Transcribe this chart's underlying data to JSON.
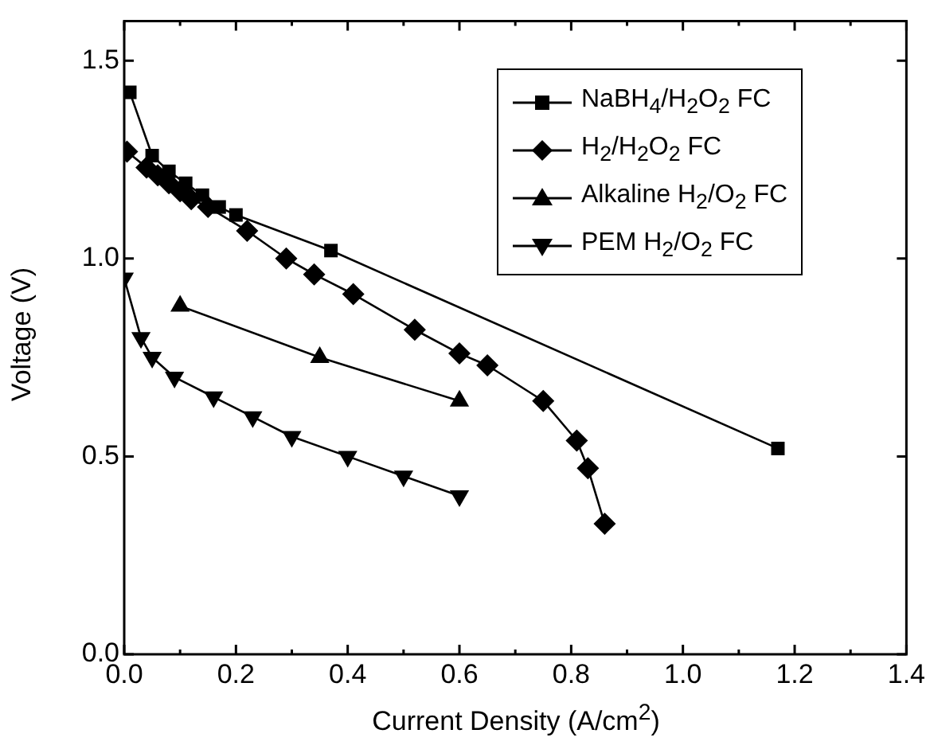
{
  "chart_data": {
    "type": "line",
    "xlabel": "Current Density (A/cm$^{2}$)",
    "ylabel": "Voltage (V)",
    "xlim": [
      0,
      1.4
    ],
    "xticks": [
      {
        "value": 0,
        "label": "0.0"
      },
      0.2,
      0.4,
      0.6,
      0.8,
      {
        "value": 1,
        "label": "1.0"
      },
      1.2,
      1.4
    ],
    "ylim": [
      0,
      1.6
    ],
    "yticks": [
      {
        "value": 0,
        "label": "0.0"
      },
      0.5,
      {
        "value": 1,
        "label": "1.0"
      },
      1.5
    ],
    "grid": false,
    "legend": "top right",
    "line_style": "solid",
    "series": [
      {
        "name": "NaBH$_{4}$/H$_{2}$O$_{2}$ FC",
        "color": "#000000",
        "marker": "square",
        "x": [
          0.01,
          0.05,
          0.08,
          0.11,
          0.14,
          0.17,
          0.2,
          0.37,
          1.17
        ],
        "values": [
          1.42,
          1.26,
          1.22,
          1.19,
          1.16,
          1.13,
          1.11,
          1.02,
          0.52
        ]
      },
      {
        "name": "H$_{2}$/H$_{2}$O$_{2}$ FC",
        "color": "#000000",
        "marker": "diamond",
        "x": [
          0.005,
          0.04,
          0.06,
          0.08,
          0.1,
          0.12,
          0.15,
          0.22,
          0.29,
          0.34,
          0.41,
          0.52,
          0.6,
          0.65,
          0.75,
          0.81,
          0.83,
          0.86
        ],
        "values": [
          1.27,
          1.23,
          1.21,
          1.19,
          1.17,
          1.15,
          1.13,
          1.07,
          1.0,
          0.96,
          0.91,
          0.82,
          0.76,
          0.73,
          0.64,
          0.54,
          0.47,
          0.33
        ]
      },
      {
        "name": "Alkaline H$_{2}$/O$_{2}$ FC",
        "color": "#000000",
        "marker": "triangle",
        "x": [
          0.1,
          0.35,
          0.6
        ],
        "values": [
          0.88,
          0.75,
          0.64
        ]
      },
      {
        "name": "PEM H$_{2}$/O$_{2}$ FC",
        "color": "#000000",
        "marker": "triangle-down",
        "x": [
          0.0,
          0.03,
          0.05,
          0.09,
          0.16,
          0.23,
          0.3,
          0.4,
          0.5,
          0.6
        ],
        "values": [
          0.95,
          0.8,
          0.75,
          0.7,
          0.65,
          0.6,
          0.55,
          0.5,
          0.45,
          0.4
        ]
      }
    ]
  }
}
